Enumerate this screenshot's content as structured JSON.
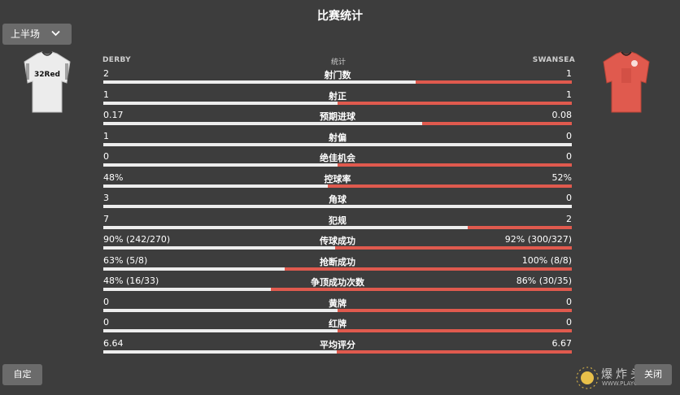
{
  "title": "比赛统计",
  "half_selector": {
    "label": "上半场",
    "chevron_icon": "chevron-down-icon"
  },
  "home": {
    "name": "DERBY",
    "shirt_text": "32Red",
    "kit_color": "#ececec"
  },
  "away": {
    "name": "SWANSEA",
    "kit_color": "#e05a4e"
  },
  "column_header": "统计",
  "colors": {
    "home_bar": "#ededed",
    "away_bar": "#e05a4e",
    "background": "#3d3d3d"
  },
  "stats": [
    {
      "label": "射门数",
      "home": "2",
      "away": "1",
      "home_share": 0.667
    },
    {
      "label": "射正",
      "home": "1",
      "away": "1",
      "home_share": 0.5
    },
    {
      "label": "预期进球",
      "home": "0.17",
      "away": "0.08",
      "home_share": 0.68
    },
    {
      "label": "射偏",
      "home": "1",
      "away": "0",
      "home_share": 1.0
    },
    {
      "label": "绝佳机会",
      "home": "0",
      "away": "0",
      "home_share": 0.5
    },
    {
      "label": "控球率",
      "home": "48%",
      "away": "52%",
      "home_share": 0.48
    },
    {
      "label": "角球",
      "home": "3",
      "away": "0",
      "home_share": 1.0
    },
    {
      "label": "犯规",
      "home": "7",
      "away": "2",
      "home_share": 0.778
    },
    {
      "label": "传球成功",
      "home": "90% (242/270)",
      "away": "92% (300/327)",
      "home_share": 0.495
    },
    {
      "label": "抢断成功",
      "home": "63% (5/8)",
      "away": "100% (8/8)",
      "home_share": 0.387
    },
    {
      "label": "争顶成功次数",
      "home": "48% (16/33)",
      "away": "86% (30/35)",
      "home_share": 0.358
    },
    {
      "label": "黄牌",
      "home": "0",
      "away": "0",
      "home_share": 0.5
    },
    {
      "label": "红牌",
      "home": "0",
      "away": "0",
      "home_share": 0.5
    },
    {
      "label": "平均评分",
      "home": "6.64",
      "away": "6.67",
      "home_share": 0.499
    }
  ],
  "buttons": {
    "custom": "自定",
    "close": "关闭"
  },
  "watermark": {
    "text": "爆炸头",
    "url": "WWW.PLAYGM.CC"
  }
}
